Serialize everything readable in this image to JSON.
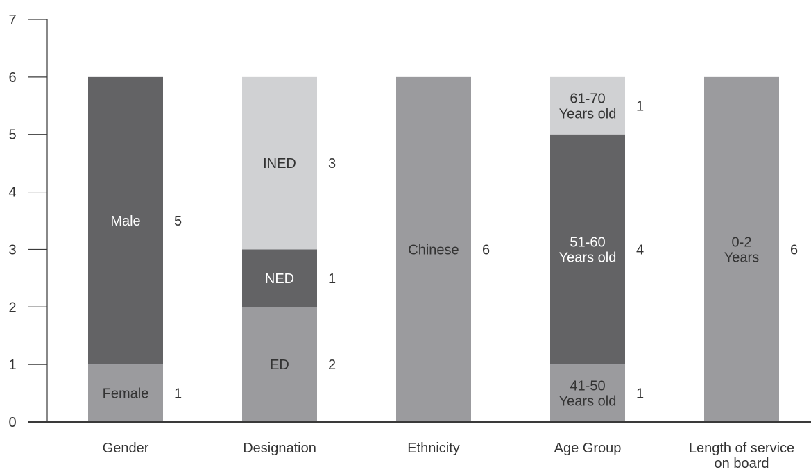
{
  "chart_data": {
    "type": "bar",
    "stacked": true,
    "title": "",
    "xlabel": "",
    "ylabel": "",
    "ylim": [
      0,
      7
    ],
    "yticks": [
      "0",
      "1",
      "2",
      "3",
      "4",
      "5",
      "6",
      "7"
    ],
    "grid": false,
    "legend": "none",
    "colors": {
      "light": "#d0d1d3",
      "mid": "#9b9b9e",
      "dark": "#636365",
      "axis": "#3a3a3a"
    },
    "categories": [
      {
        "label_lines": [
          "Gender"
        ],
        "segments": [
          {
            "label_lines": [
              "Female"
            ],
            "value": 1,
            "count": "1",
            "shade": "mid"
          },
          {
            "label_lines": [
              "Male"
            ],
            "value": 5,
            "count": "5",
            "shade": "dark"
          }
        ]
      },
      {
        "label_lines": [
          "Designation"
        ],
        "segments": [
          {
            "label_lines": [
              "ED"
            ],
            "value": 2,
            "count": "2",
            "shade": "mid"
          },
          {
            "label_lines": [
              "NED"
            ],
            "value": 1,
            "count": "1",
            "shade": "dark"
          },
          {
            "label_lines": [
              "INED"
            ],
            "value": 3,
            "count": "3",
            "shade": "light"
          }
        ]
      },
      {
        "label_lines": [
          "Ethnicity"
        ],
        "segments": [
          {
            "label_lines": [
              "Chinese"
            ],
            "value": 6,
            "count": "6",
            "shade": "mid"
          }
        ]
      },
      {
        "label_lines": [
          "Age Group"
        ],
        "segments": [
          {
            "label_lines": [
              "41-50",
              "Years old"
            ],
            "value": 1,
            "count": "1",
            "shade": "mid"
          },
          {
            "label_lines": [
              "51-60",
              "Years old"
            ],
            "value": 4,
            "count": "4",
            "shade": "dark"
          },
          {
            "label_lines": [
              "61-70",
              "Years old"
            ],
            "value": 1,
            "count": "1",
            "shade": "light"
          }
        ]
      },
      {
        "label_lines": [
          "Length of service",
          "on board"
        ],
        "segments": [
          {
            "label_lines": [
              "0-2",
              "Years"
            ],
            "value": 6,
            "count": "6",
            "shade": "mid"
          }
        ]
      }
    ]
  }
}
